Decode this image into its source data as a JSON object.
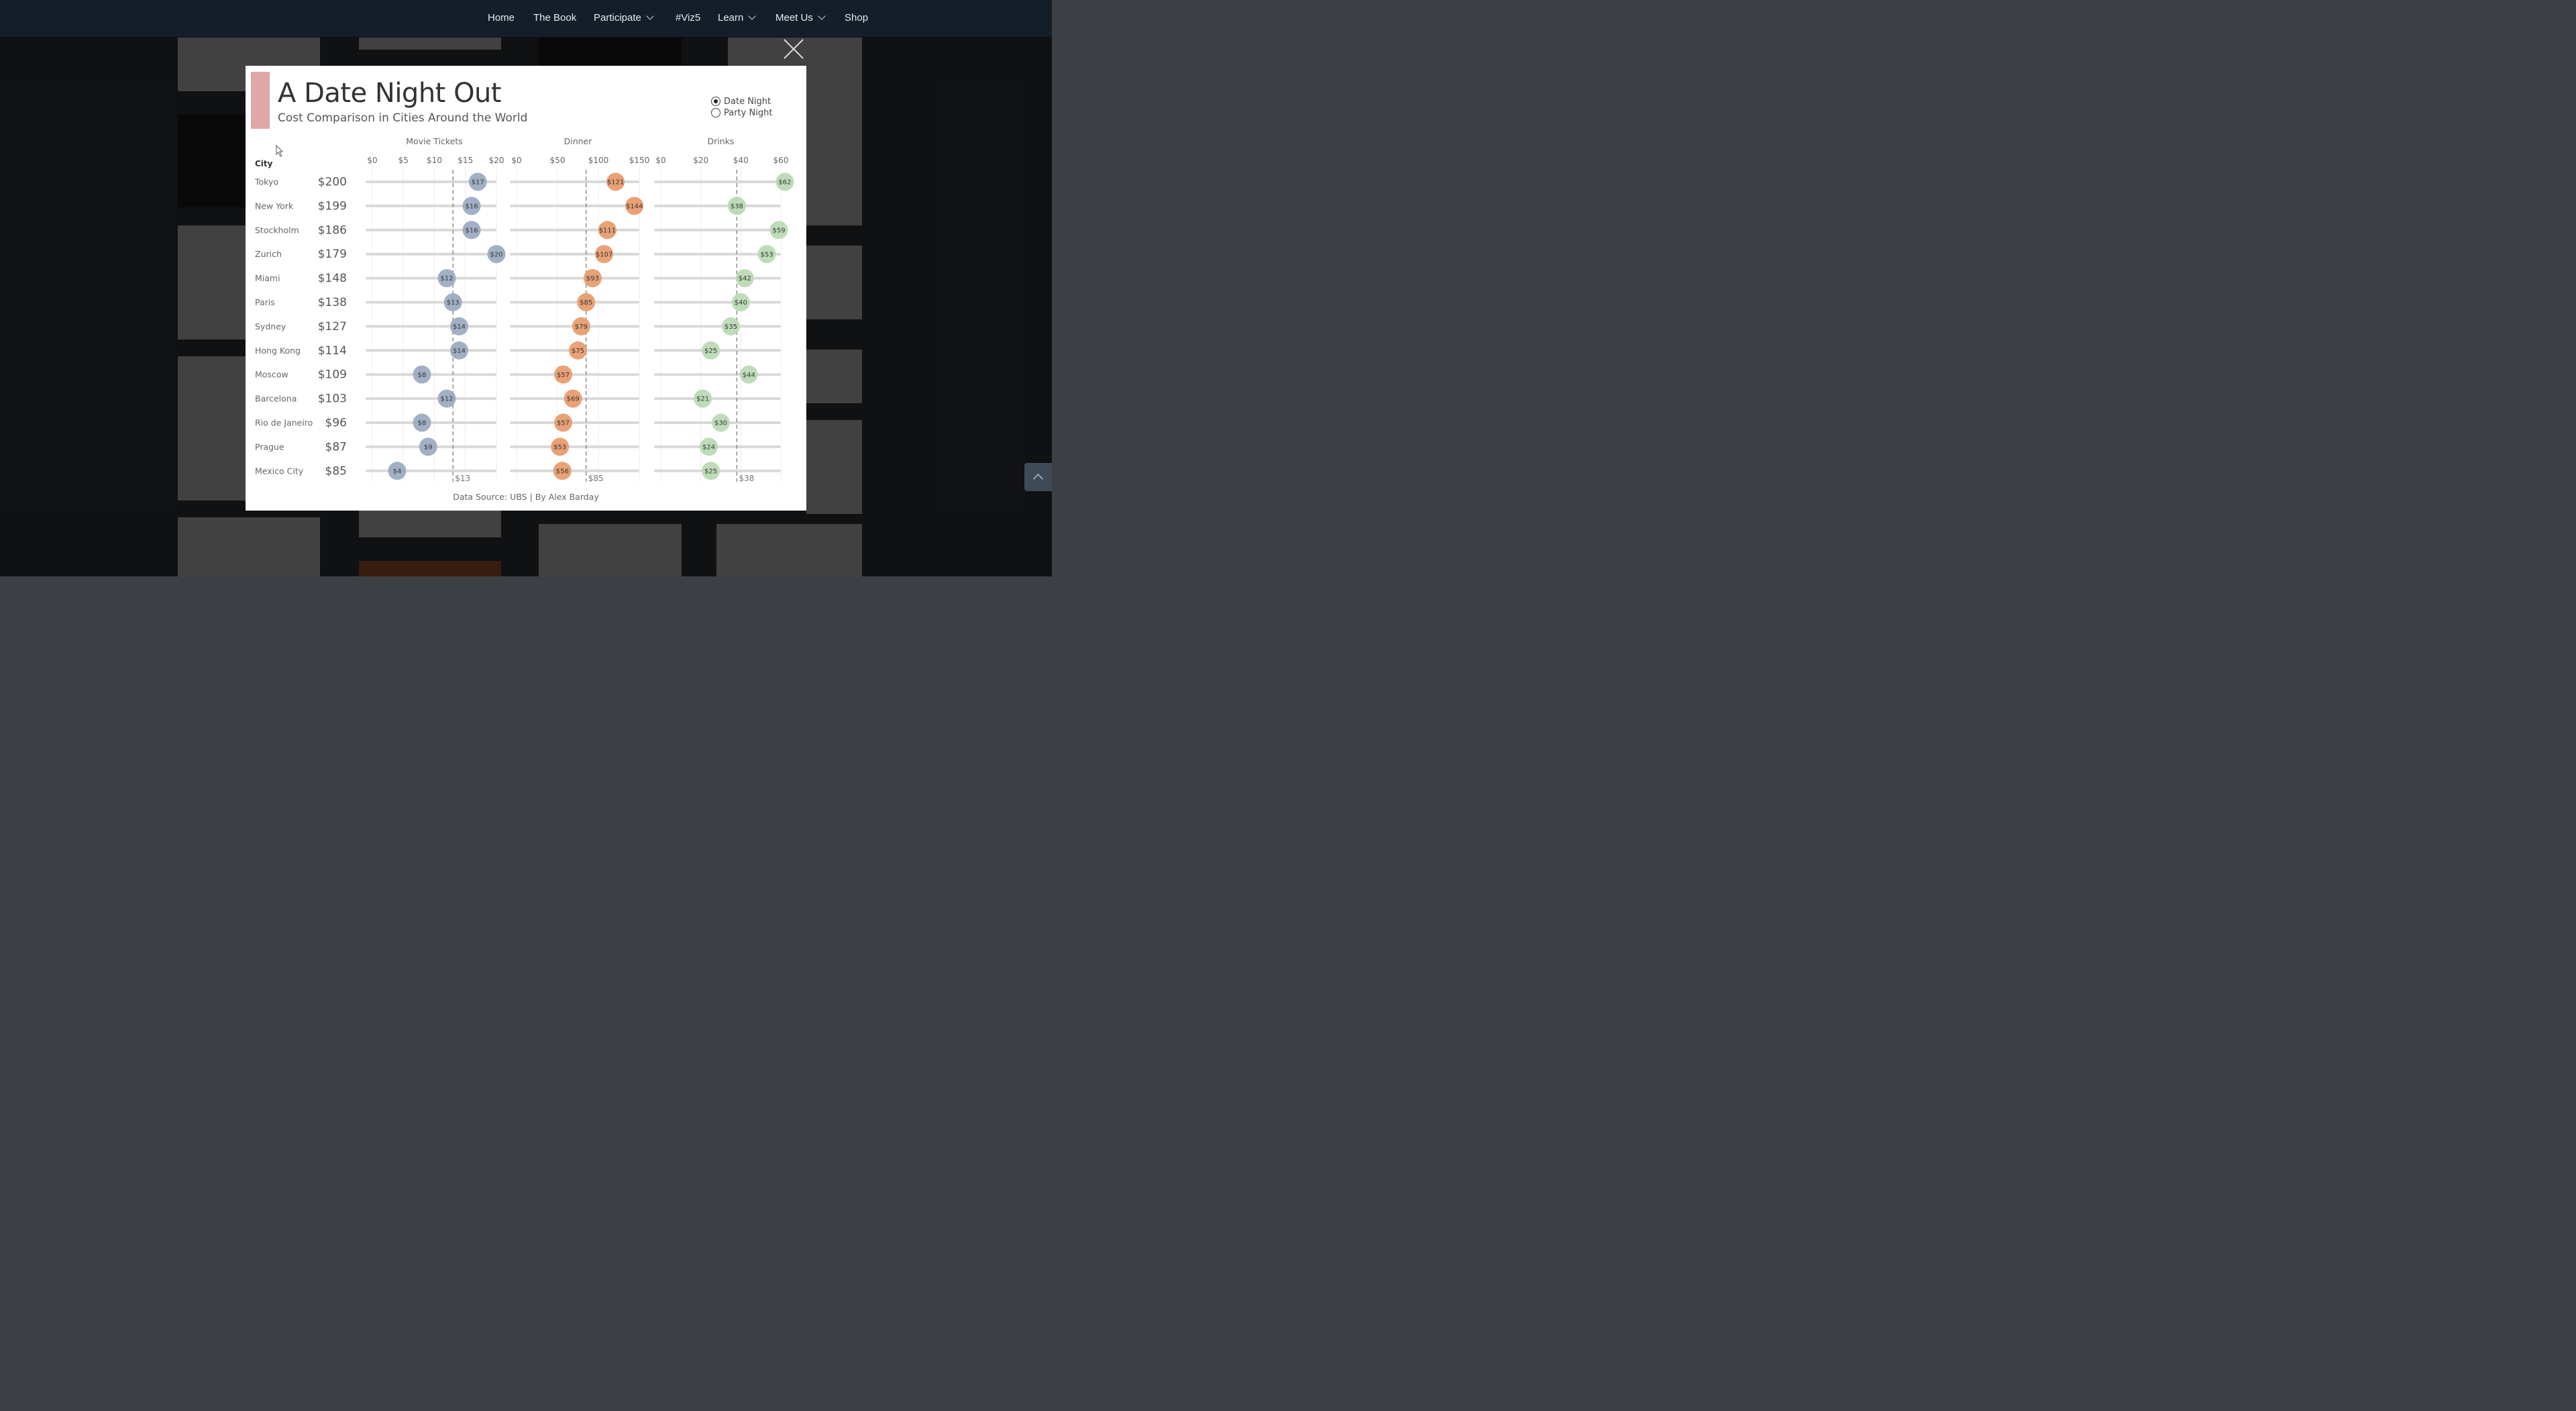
{
  "nav": {
    "items": [
      {
        "label": "Home",
        "dropdown": false
      },
      {
        "label": "The Book",
        "dropdown": false
      },
      {
        "label": "Participate",
        "dropdown": true
      },
      {
        "label": "#Viz5",
        "dropdown": false
      },
      {
        "label": "Learn",
        "dropdown": true
      },
      {
        "label": "Meet Us",
        "dropdown": true
      },
      {
        "label": "Shop",
        "dropdown": false
      }
    ]
  },
  "modal": {
    "title": "A Date Night Out",
    "subtitle": "Cost Comparison in Cities Around the World",
    "accent_color": "#dfa7a7",
    "toggle": {
      "options": [
        "Date Night",
        "Party Night"
      ],
      "selected": "Date Night"
    },
    "footer": "Data Source: UBS  |  By Alex Barday"
  },
  "chart_data": {
    "type": "scatter",
    "city_header": "City",
    "cities": [
      "Tokyo",
      "New York",
      "Stockholm",
      "Zurich",
      "Miami",
      "Paris",
      "Sydney",
      "Hong Kong",
      "Moscow",
      "Barcelona",
      "Rio de Janeiro",
      "Prague",
      "Mexico City"
    ],
    "totals": [
      "$200",
      "$199",
      "$186",
      "$179",
      "$148",
      "$138",
      "$127",
      "$114",
      "$109",
      "$103",
      "$96",
      "$87",
      "$85"
    ],
    "panels": [
      {
        "name": "Movie Tickets",
        "color": "#9aa9c0",
        "xlim": [
          0,
          20
        ],
        "ticks": [
          "$0",
          "$5",
          "$10",
          "$15",
          "$20"
        ],
        "values": [
          17,
          16,
          16,
          20,
          12,
          13,
          14,
          14,
          8,
          12,
          8,
          9,
          4
        ],
        "average": 13,
        "average_label": "$13"
      },
      {
        "name": "Dinner",
        "color": "#e79a6a",
        "xlim": [
          0,
          150
        ],
        "ticks": [
          "$0",
          "$50",
          "$100",
          "$150"
        ],
        "values": [
          121,
          144,
          111,
          107,
          93,
          85,
          79,
          75,
          57,
          69,
          57,
          53,
          56
        ],
        "average": 85,
        "average_label": "$85"
      },
      {
        "name": "Drinks",
        "color": "#b9d9b3",
        "xlim": [
          0,
          60
        ],
        "ticks": [
          "$0",
          "$20",
          "$40",
          "$60"
        ],
        "values": [
          62,
          38,
          59,
          53,
          42,
          40,
          35,
          25,
          44,
          21,
          30,
          24,
          25
        ],
        "average": 38,
        "average_label": "$38"
      }
    ]
  }
}
